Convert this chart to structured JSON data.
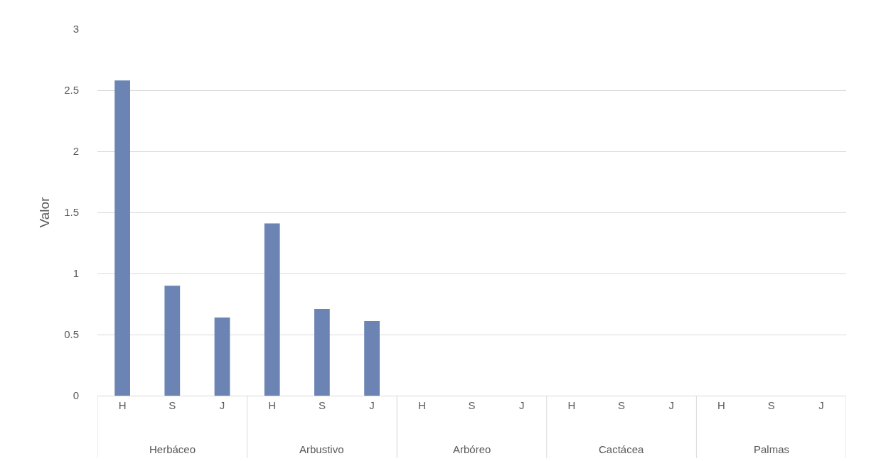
{
  "chart_data": {
    "type": "bar",
    "ylabel": "Valor",
    "categories": [
      "H",
      "S",
      "J",
      "H",
      "S",
      "J",
      "H",
      "S",
      "J",
      "H",
      "S",
      "J",
      "H",
      "S",
      "J"
    ],
    "values": [
      2.58,
      0.9,
      0.64,
      1.41,
      0.71,
      0.61,
      0,
      0,
      0,
      0,
      0,
      0,
      0,
      0,
      0
    ],
    "color": "#6b84b4",
    "annotations": [
      "Herbáceo",
      "Arbustivo",
      "Arbóreo",
      "Cactácea",
      "Palmas"
    ],
    "ylim": [
      0,
      3
    ],
    "yticks": [
      0,
      0.5,
      1,
      1.5,
      2,
      2.5,
      3
    ],
    "grid": "y"
  }
}
